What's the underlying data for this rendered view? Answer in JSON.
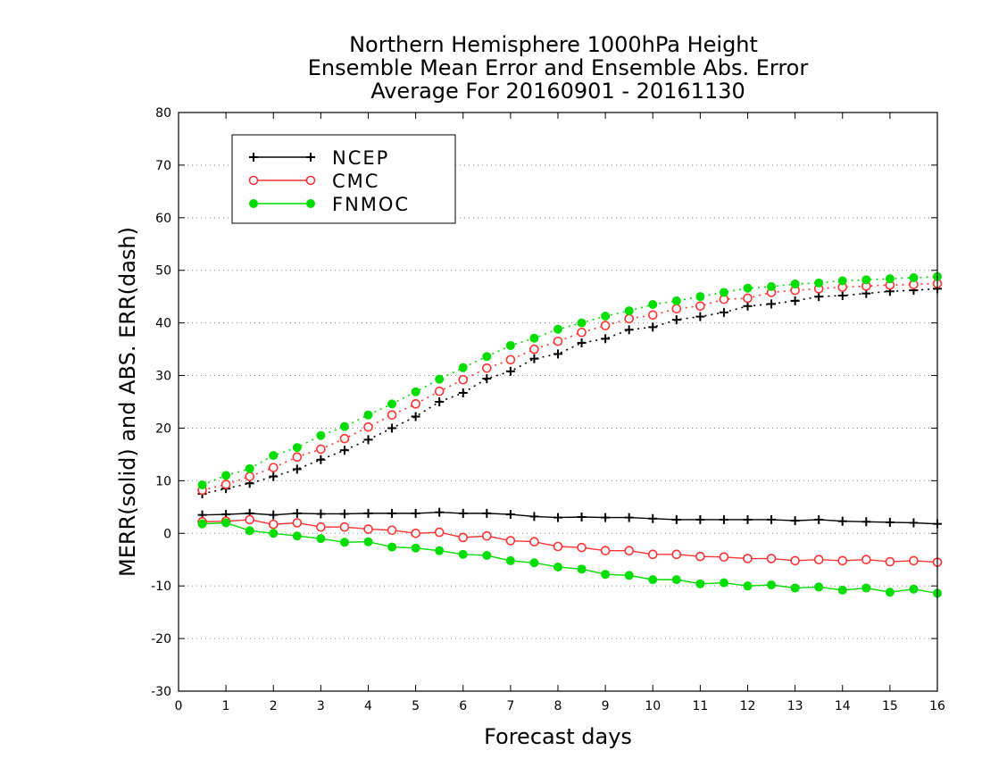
{
  "chart_data": {
    "type": "line",
    "title": [
      "Northern Hemisphere 1000hPa Height",
      "Ensemble Mean Error and Ensemble Abs. Error",
      "Average For 20160901 - 20161130"
    ],
    "xlabel": "Forecast days",
    "ylabel": "MERR(solid) and ABS. ERR(dash)",
    "xlim": [
      0,
      16
    ],
    "ylim": [
      -30,
      80
    ],
    "xticks": [
      0,
      1,
      2,
      3,
      4,
      5,
      6,
      7,
      8,
      9,
      10,
      11,
      12,
      13,
      14,
      15,
      16
    ],
    "yticks": [
      -30,
      -20,
      -10,
      0,
      10,
      20,
      30,
      40,
      50,
      60,
      70,
      80
    ],
    "grid": "dotted horizontal",
    "legend_position": "top-left",
    "x": [
      0.5,
      1,
      1.5,
      2,
      2.5,
      3,
      3.5,
      4,
      4.5,
      5,
      5.5,
      6,
      6.5,
      7,
      7.5,
      8,
      8.5,
      9,
      9.5,
      10,
      10.5,
      11,
      11.5,
      12,
      12.5,
      13,
      13.5,
      14,
      14.5,
      15,
      15.5,
      16
    ],
    "series": [
      {
        "name": "NCEP",
        "color": "#000000",
        "marker": "plus",
        "merr": [
          3.5,
          3.6,
          3.8,
          3.5,
          3.8,
          3.7,
          3.7,
          3.8,
          3.8,
          3.8,
          4.0,
          3.8,
          3.8,
          3.6,
          3.2,
          3.0,
          3.1,
          3.0,
          3.0,
          2.8,
          2.6,
          2.6,
          2.6,
          2.6,
          2.6,
          2.4,
          2.6,
          2.3,
          2.2,
          2.1,
          2.0,
          1.8
        ],
        "abserr": [
          7.5,
          8.5,
          9.5,
          10.8,
          12.2,
          14.0,
          15.8,
          17.8,
          20.0,
          22.2,
          25.0,
          26.7,
          29.4,
          30.8,
          33.2,
          34.1,
          36.2,
          37.0,
          38.7,
          39.2,
          40.6,
          41.2,
          42.0,
          43.2,
          43.6,
          44.2,
          45.0,
          45.2,
          45.6,
          46.0,
          46.2,
          46.5
        ]
      },
      {
        "name": "CMC",
        "color": "#ff3333",
        "marker": "open-circle",
        "merr": [
          2.2,
          2.3,
          2.6,
          1.7,
          2.0,
          1.2,
          1.2,
          0.8,
          0.6,
          0.0,
          0.2,
          -0.8,
          -0.5,
          -1.4,
          -1.6,
          -2.5,
          -2.7,
          -3.3,
          -3.3,
          -4.0,
          -4.0,
          -4.4,
          -4.5,
          -4.8,
          -4.8,
          -5.2,
          -5.0,
          -5.2,
          -5.0,
          -5.4,
          -5.2,
          -5.5
        ],
        "abserr": [
          8.2,
          9.3,
          10.8,
          12.5,
          14.5,
          16.0,
          18.0,
          20.2,
          22.5,
          24.6,
          27.0,
          29.2,
          31.4,
          33.0,
          35.0,
          36.5,
          38.2,
          39.5,
          40.8,
          41.5,
          42.7,
          43.2,
          44.5,
          44.7,
          45.8,
          46.2,
          46.5,
          46.8,
          47.0,
          47.2,
          47.3,
          47.5
        ]
      },
      {
        "name": "FNMOC",
        "color": "#00dd00",
        "marker": "filled-circle",
        "merr": [
          1.8,
          2.0,
          0.5,
          0.0,
          -0.5,
          -1.0,
          -1.7,
          -1.6,
          -2.6,
          -2.8,
          -3.3,
          -4.0,
          -4.2,
          -5.2,
          -5.6,
          -6.4,
          -6.8,
          -7.8,
          -8.0,
          -8.8,
          -8.8,
          -9.6,
          -9.4,
          -10.0,
          -9.8,
          -10.4,
          -10.2,
          -10.8,
          -10.4,
          -11.2,
          -10.6,
          -11.4
        ],
        "abserr": [
          9.2,
          11.0,
          12.3,
          14.8,
          16.3,
          18.6,
          20.3,
          22.5,
          24.6,
          26.9,
          29.3,
          31.5,
          33.6,
          35.7,
          37.1,
          38.8,
          40.0,
          41.3,
          42.3,
          43.5,
          44.2,
          45.0,
          45.8,
          46.6,
          46.9,
          47.4,
          47.6,
          48.0,
          48.2,
          48.4,
          48.6,
          48.8
        ]
      }
    ]
  }
}
